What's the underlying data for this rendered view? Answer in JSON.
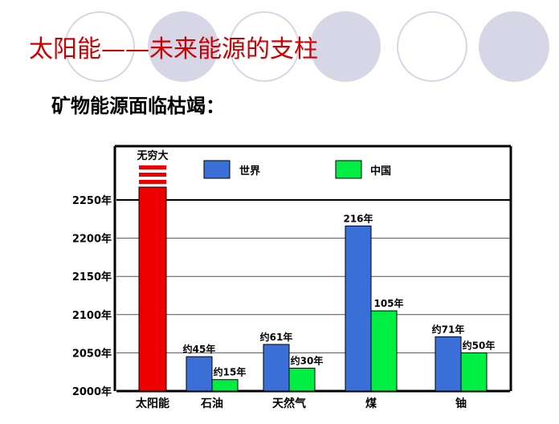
{
  "slide": {
    "title": "太阳能——未来能源的支柱",
    "subtitle": "矿物能源面临枯竭："
  },
  "chart_data": {
    "type": "bar",
    "categories": [
      "太阳能",
      "石油",
      "天然气",
      "煤",
      "铀"
    ],
    "y_tick_labels": [
      "2000年",
      "2050年",
      "2100年",
      "2150年",
      "2200年",
      "2250年"
    ],
    "ylim": [
      2000,
      2300
    ],
    "grid": true,
    "legend_position": "top",
    "series": [
      {
        "name": "世界",
        "color": "#3a6fd8",
        "values": [
          null,
          2045,
          2061,
          2216,
          2071
        ],
        "labels": [
          "",
          "约45年",
          "约61年",
          "216年",
          "约71年"
        ]
      },
      {
        "name": "中国",
        "color": "#00ee44",
        "values": [
          null,
          2015,
          2030,
          2105,
          2050
        ],
        "labels": [
          "",
          "约15年",
          "约30年",
          "105年",
          "约50年"
        ]
      }
    ],
    "special_bar": {
      "category": "太阳能",
      "label": "无穷大",
      "color": "#ee0000"
    }
  }
}
